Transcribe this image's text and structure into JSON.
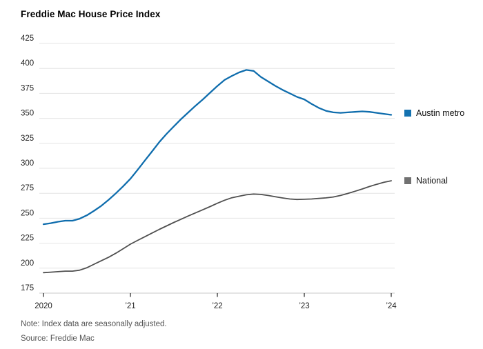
{
  "header": {
    "title": "Freddie Mac House Price Index"
  },
  "chart_data": {
    "type": "line",
    "x_unit": "monthly",
    "x_range": [
      "2020-01",
      "2024-01"
    ],
    "x_tick_labels": [
      "2020",
      "’21",
      "’22",
      "’23",
      "’24"
    ],
    "ylim": [
      175,
      425
    ],
    "y_ticks": [
      175,
      200,
      225,
      250,
      275,
      300,
      325,
      350,
      375,
      400,
      425
    ],
    "grid": "horizontal-only",
    "legend_position": "right-of-line-ends",
    "series": [
      {
        "name": "Austin metro",
        "color": "#0f6dad",
        "values": [
          244,
          245,
          246.5,
          247.5,
          247.5,
          249.5,
          253,
          257.5,
          262.5,
          268.5,
          275,
          282,
          289.5,
          298.5,
          307.8,
          317,
          326.4,
          334.5,
          342,
          349.3,
          356,
          362.7,
          369,
          375.7,
          382.4,
          388.5,
          392.5,
          396,
          398.5,
          397.5,
          391.5,
          387,
          382.5,
          378.5,
          375,
          371.5,
          369,
          364.5,
          360.5,
          357.5,
          356,
          355.5,
          356,
          356.5,
          357,
          356.5,
          355.5,
          354.5,
          353.5
        ]
      },
      {
        "name": "National",
        "color": "#4f4f4f",
        "values": [
          195.5,
          196,
          196.5,
          197,
          197,
          198,
          200.5,
          204,
          207.5,
          211,
          215,
          219.5,
          224,
          227.8,
          231.5,
          235.2,
          238.9,
          242.3,
          245.8,
          249,
          252.3,
          255.4,
          258.5,
          261.7,
          265,
          268,
          270.5,
          272,
          273.5,
          274.2,
          273.8,
          272.8,
          271.5,
          270.3,
          269.3,
          268.8,
          269,
          269.3,
          269.8,
          270.4,
          271.3,
          272.8,
          274.8,
          277,
          279.3,
          281.8,
          284,
          286,
          287.5
        ]
      }
    ]
  },
  "legend": {
    "items": [
      {
        "label": "Austin metro",
        "swatch_color": "#1472b0"
      },
      {
        "label": "National",
        "swatch_color": "#717171"
      }
    ]
  },
  "colors": {
    "gridline": "#e4e4e4",
    "axis_line": "#c9c9c9",
    "tick": "#222222",
    "axis_label": "#222222"
  },
  "footer": {
    "note": "Note: Index data are seasonally adjusted.",
    "source": "Source: Freddie Mac"
  }
}
